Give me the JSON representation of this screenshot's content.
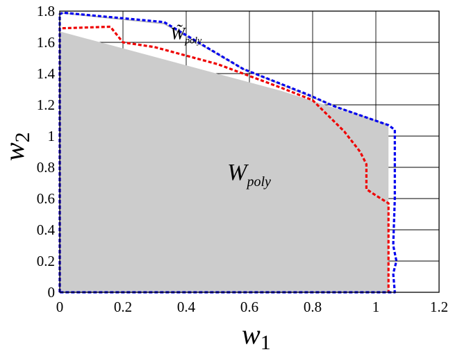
{
  "chart_data": {
    "type": "area",
    "xlabel": "w",
    "xlabel_sub": "1",
    "ylabel": "w",
    "ylabel_sub": "2",
    "xlim": [
      0,
      1.2
    ],
    "ylim": [
      0,
      1.8
    ],
    "xticks": [
      0,
      0.2,
      0.4,
      0.6,
      0.8,
      1,
      1.2
    ],
    "xtick_labels": [
      "0",
      "0.2",
      "0.4",
      "0.6",
      "0.8",
      "1",
      "1.2"
    ],
    "yticks": [
      0,
      0.2,
      0.4,
      0.6,
      0.8,
      1,
      1.2,
      1.4,
      1.6,
      1.8
    ],
    "ytick_labels": [
      "0",
      "0.2",
      "0.4",
      "0.6",
      "0.8",
      "1",
      "1.2",
      "1.4",
      "1.6",
      "1.8"
    ],
    "grid": true,
    "annotations": [
      {
        "text": "W",
        "sub": "poly",
        "x": 0.53,
        "y": 0.72,
        "style": "region"
      },
      {
        "text": "W̃",
        "sub": "poly",
        "x": 0.35,
        "y": 1.62,
        "style": "tilde"
      }
    ],
    "series": [
      {
        "kind": "filled-region",
        "color": "#cccccc",
        "points": [
          [
            0,
            0
          ],
          [
            0,
            1.67
          ],
          [
            0.7,
            1.29
          ],
          [
            1.04,
            1.07
          ],
          [
            1.04,
            0
          ],
          [
            0,
            0
          ]
        ]
      },
      {
        "kind": "solid-line",
        "color": "#bbbbbb",
        "points": [
          [
            0,
            1.79
          ],
          [
            0.33,
            1.72
          ],
          [
            0.58,
            1.43
          ],
          [
            0.87,
            1.19
          ],
          [
            1.04,
            1.07
          ]
        ]
      },
      {
        "kind": "dashed-line",
        "color": "#ee0000",
        "points": [
          [
            0,
            0
          ],
          [
            0,
            1.69
          ],
          [
            0.16,
            1.7
          ],
          [
            0.2,
            1.6
          ],
          [
            0.3,
            1.57
          ],
          [
            0.5,
            1.46
          ],
          [
            0.7,
            1.31
          ],
          [
            0.8,
            1.23
          ],
          [
            0.9,
            1.03
          ],
          [
            0.95,
            0.9
          ],
          [
            0.97,
            0.82
          ],
          [
            0.97,
            0.66
          ],
          [
            1.0,
            0.62
          ],
          [
            1.04,
            0.57
          ],
          [
            1.04,
            0.35
          ],
          [
            1.04,
            0.18
          ],
          [
            1.04,
            0
          ]
        ]
      },
      {
        "kind": "dashed-line",
        "color": "#0000ee",
        "points": [
          [
            0,
            0
          ],
          [
            0,
            1.78
          ],
          [
            0.01,
            1.79
          ],
          [
            0.33,
            1.73
          ],
          [
            0.58,
            1.43
          ],
          [
            0.78,
            1.27
          ],
          [
            0.87,
            1.19
          ],
          [
            1.04,
            1.07
          ],
          [
            1.06,
            1.04
          ],
          [
            1.06,
            0.85
          ],
          [
            1.06,
            0.6
          ],
          [
            1.055,
            0.3
          ],
          [
            1.065,
            0.2
          ],
          [
            1.055,
            0.12
          ],
          [
            1.06,
            0
          ],
          [
            1.04,
            0
          ],
          [
            0,
            0
          ]
        ]
      }
    ]
  }
}
